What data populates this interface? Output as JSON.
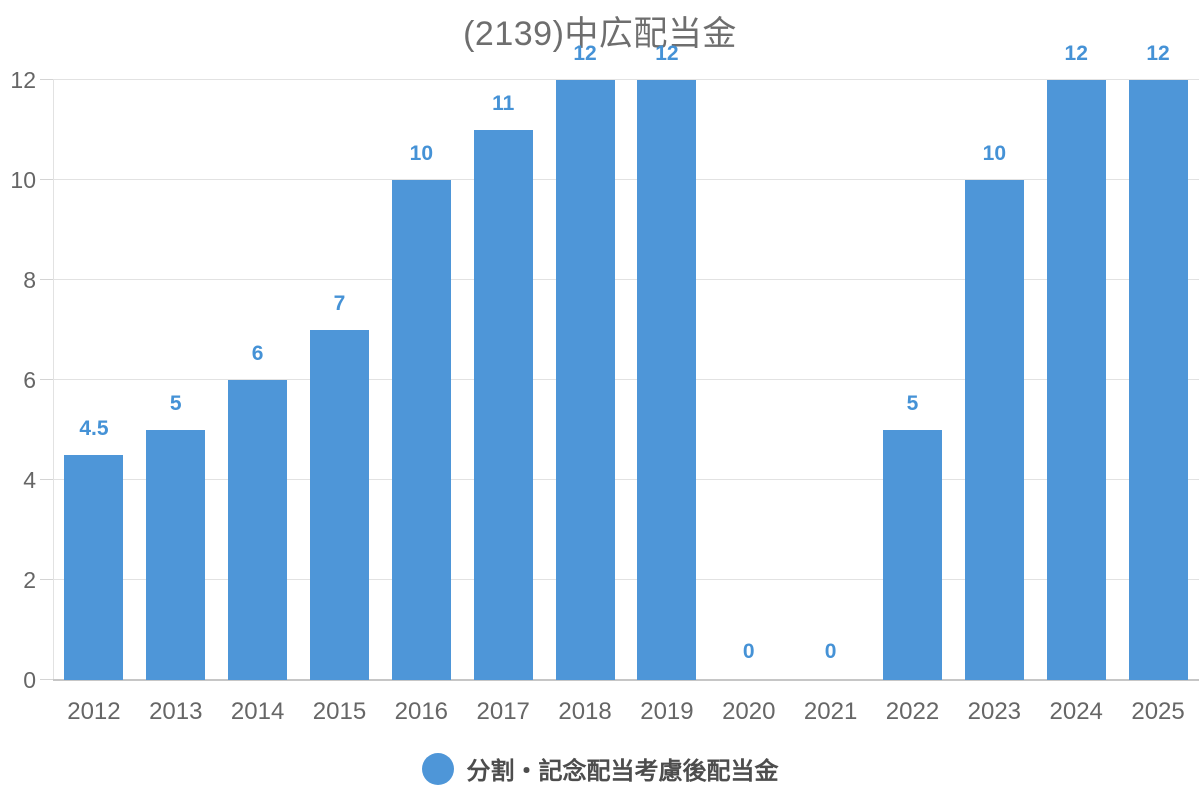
{
  "title": "(2139)中広配当金",
  "chart_data": {
    "type": "bar",
    "title": "(2139)中広配当金",
    "categories": [
      "2012",
      "2013",
      "2014",
      "2015",
      "2016",
      "2017",
      "2018",
      "2019",
      "2020",
      "2021",
      "2022",
      "2023",
      "2024",
      "2025"
    ],
    "series": [
      {
        "name": "分割・記念配当考慮後配当金",
        "values": [
          4.5,
          5,
          6,
          7,
          10,
          11,
          12,
          12,
          0,
          0,
          5,
          10,
          12,
          12
        ],
        "data_labels": [
          "4.5",
          "5",
          "6",
          "7",
          "10",
          "11",
          "12",
          "12",
          "0",
          "0",
          "5",
          "10",
          "12",
          "12"
        ]
      }
    ],
    "xlabel": "",
    "ylabel": "",
    "ylim": [
      0,
      12
    ],
    "yticks": [
      0,
      2,
      4,
      6,
      8,
      10,
      12
    ],
    "grid": true,
    "legend_position": "bottom"
  },
  "colors": {
    "bar": "#4E96D8",
    "value_label": "#4592D6",
    "title": "#6E6E6E",
    "axis_label": "#666666",
    "gridline": "#E2E2E2",
    "axis_line": "#C6C6C6",
    "legend_text": "#4D4D4D"
  },
  "legend": {
    "items": [
      {
        "label": "分割・記念配当考慮後配当金",
        "color": "#4E96D8",
        "marker": "circle-icon"
      }
    ]
  }
}
